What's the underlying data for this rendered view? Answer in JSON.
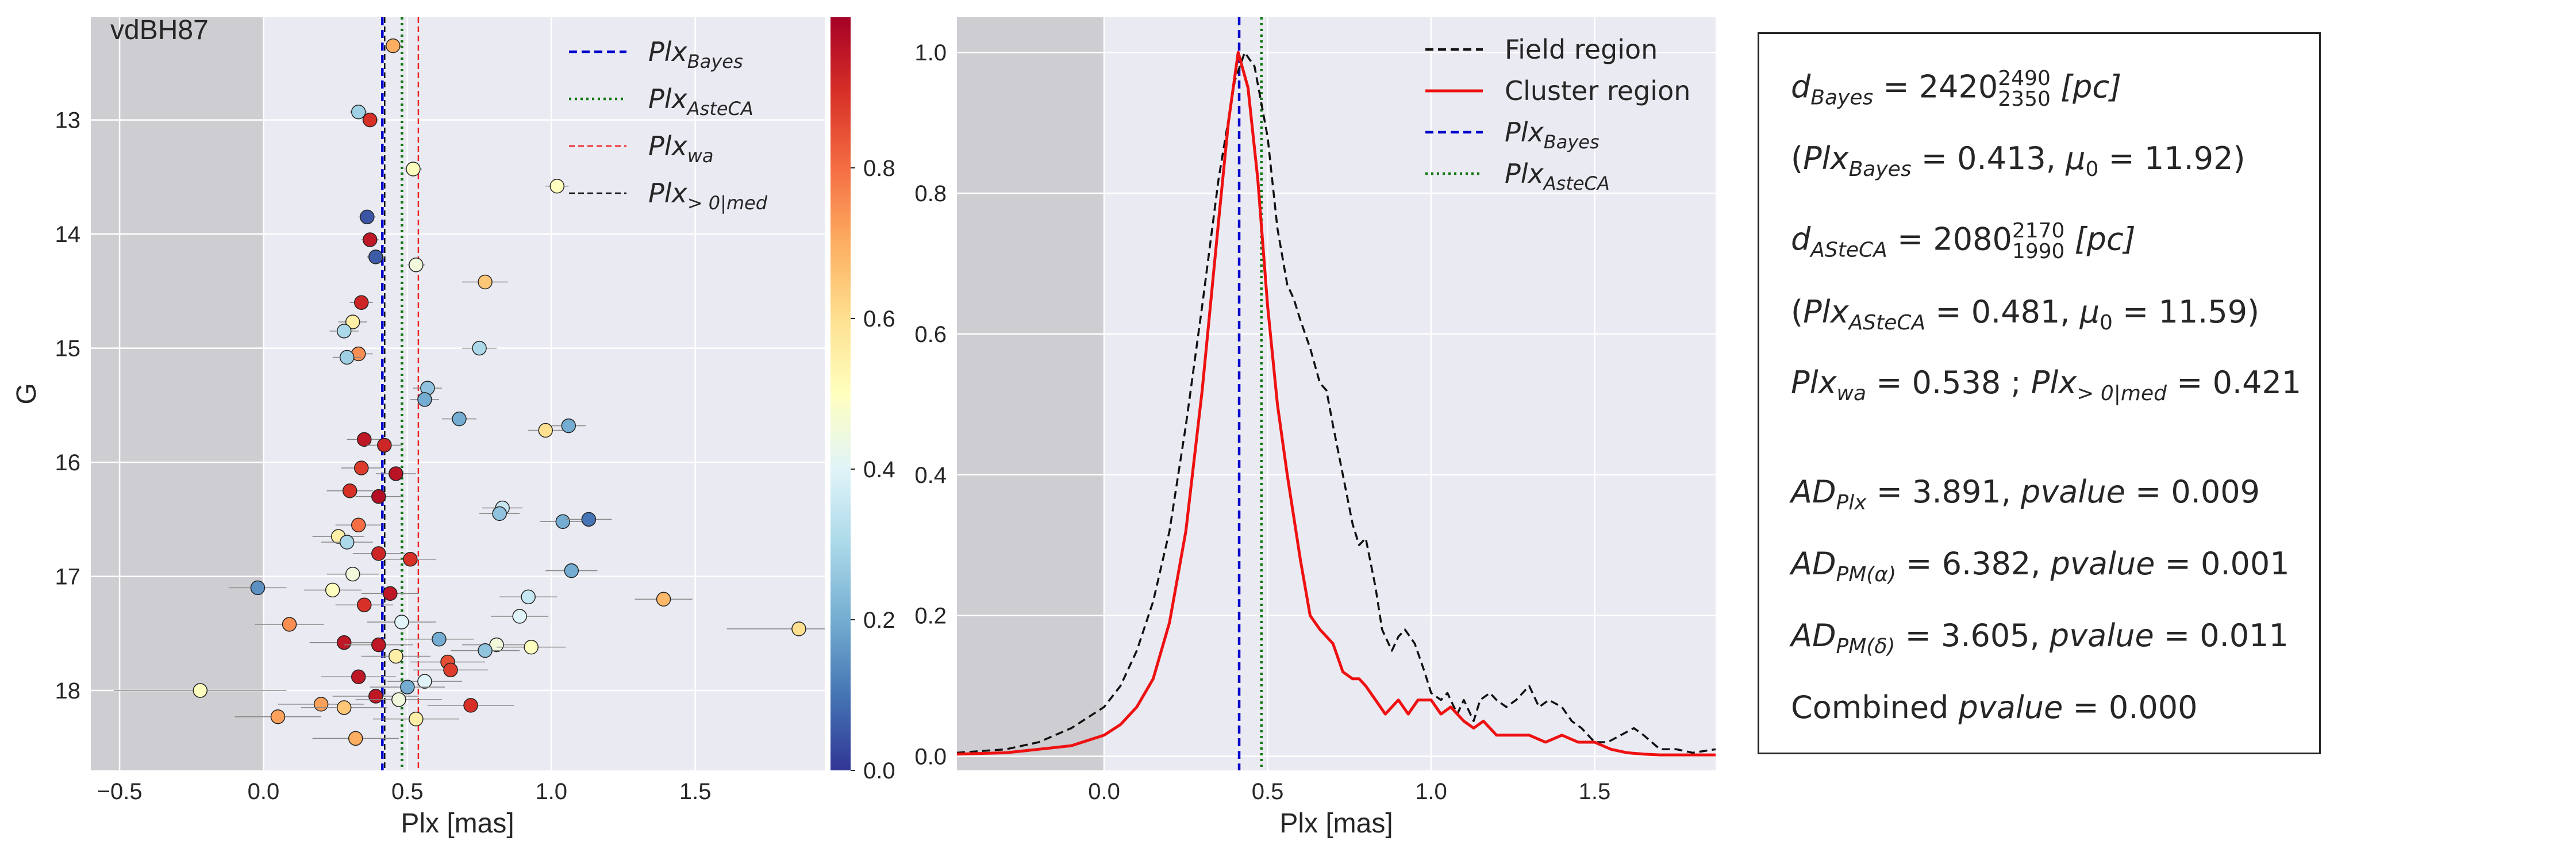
{
  "chart_data": [
    {
      "type": "scatter",
      "title": "",
      "annotation": "vdBH87",
      "xlabel": "Plx [mas]",
      "ylabel": "G",
      "xlim": [
        -0.6,
        1.95
      ],
      "ylim": [
        18.7,
        12.1
      ],
      "y_inverted": true,
      "grid": true,
      "x_ticks": [
        -0.5,
        0.0,
        0.5,
        1.0,
        1.5
      ],
      "x_tick_labels": [
        "−0.5",
        "0.0",
        "0.5",
        "1.0",
        "1.5"
      ],
      "y_ticks": [
        13,
        14,
        15,
        16,
        17,
        18
      ],
      "y_tick_labels": [
        "13",
        "14",
        "15",
        "16",
        "17",
        "18"
      ],
      "shaded_region": {
        "x_from": -0.6,
        "x_to": 0.0
      },
      "legend_placement": "top-right",
      "legend": [
        {
          "label_main": "Plx",
          "label_sub": "Bayes",
          "style": "dashed",
          "color": "#0000cc"
        },
        {
          "label_main": "Plx",
          "label_sub": "AsteCA",
          "style": "dotted",
          "color": "#117711"
        },
        {
          "label_main": "Plx",
          "label_sub": "wa",
          "style": "dashed-thin",
          "color": "#ee2222"
        },
        {
          "label_main": "Plx",
          "label_sub": "> 0|med",
          "style": "dashed-thin",
          "color": "#111111"
        }
      ],
      "vlines": [
        {
          "x": 0.413,
          "color": "#0000cc",
          "style": "dashed"
        },
        {
          "x": 0.481,
          "color": "#117711",
          "style": "dotted"
        },
        {
          "x": 0.538,
          "color": "#ee2222",
          "style": "dashed-thin"
        },
        {
          "x": 0.421,
          "color": "#111111",
          "style": "dashed-thin"
        }
      ],
      "colorbar": {
        "colormap": "RdYlBu_r",
        "range": [
          0.0,
          1.0
        ],
        "ticks": [
          0.0,
          0.2,
          0.4,
          0.6,
          0.8
        ],
        "tick_labels": [
          "0.0",
          "0.2",
          "0.4",
          "0.6",
          "0.8"
        ]
      },
      "points": [
        {
          "x": 0.45,
          "y": 12.35,
          "err": 0.03,
          "c": 0.7
        },
        {
          "x": 0.33,
          "y": 12.93,
          "err": 0.03,
          "c": 0.28
        },
        {
          "x": 0.37,
          "y": 13.0,
          "err": 0.03,
          "c": 0.9
        },
        {
          "x": 0.52,
          "y": 13.43,
          "err": 0.03,
          "c": 0.5
        },
        {
          "x": 1.02,
          "y": 13.58,
          "err": 0.04,
          "c": 0.5
        },
        {
          "x": 0.36,
          "y": 13.85,
          "err": 0.03,
          "c": 0.05
        },
        {
          "x": 0.37,
          "y": 14.05,
          "err": 0.03,
          "c": 0.95
        },
        {
          "x": 0.39,
          "y": 14.2,
          "err": 0.03,
          "c": 0.06
        },
        {
          "x": 0.53,
          "y": 14.27,
          "err": 0.03,
          "c": 0.45
        },
        {
          "x": 0.77,
          "y": 14.42,
          "err": 0.08,
          "c": 0.65
        },
        {
          "x": 0.34,
          "y": 14.6,
          "err": 0.04,
          "c": 0.92
        },
        {
          "x": 0.31,
          "y": 14.77,
          "err": 0.05,
          "c": 0.55
        },
        {
          "x": 0.28,
          "y": 14.85,
          "err": 0.05,
          "c": 0.3
        },
        {
          "x": 0.33,
          "y": 15.05,
          "err": 0.05,
          "c": 0.75
        },
        {
          "x": 0.29,
          "y": 15.08,
          "err": 0.05,
          "c": 0.28
        },
        {
          "x": 0.75,
          "y": 15.0,
          "err": 0.06,
          "c": 0.3
        },
        {
          "x": 0.57,
          "y": 15.35,
          "err": 0.05,
          "c": 0.25
        },
        {
          "x": 0.56,
          "y": 15.45,
          "err": 0.05,
          "c": 0.2
        },
        {
          "x": 0.68,
          "y": 15.62,
          "err": 0.06,
          "c": 0.2
        },
        {
          "x": 0.98,
          "y": 15.72,
          "err": 0.06,
          "c": 0.6
        },
        {
          "x": 1.06,
          "y": 15.68,
          "err": 0.06,
          "c": 0.2
        },
        {
          "x": 0.35,
          "y": 15.8,
          "err": 0.06,
          "c": 0.95
        },
        {
          "x": 0.42,
          "y": 15.85,
          "err": 0.06,
          "c": 0.92
        },
        {
          "x": 0.34,
          "y": 16.05,
          "err": 0.07,
          "c": 0.88
        },
        {
          "x": 0.46,
          "y": 16.1,
          "err": 0.07,
          "c": 0.96
        },
        {
          "x": 0.3,
          "y": 16.25,
          "err": 0.08,
          "c": 0.9
        },
        {
          "x": 0.4,
          "y": 16.3,
          "err": 0.08,
          "c": 0.97
        },
        {
          "x": 0.83,
          "y": 16.4,
          "err": 0.07,
          "c": 0.35
        },
        {
          "x": 0.82,
          "y": 16.45,
          "err": 0.07,
          "c": 0.25
        },
        {
          "x": 1.04,
          "y": 16.52,
          "err": 0.08,
          "c": 0.2
        },
        {
          "x": 1.13,
          "y": 16.5,
          "err": 0.08,
          "c": 0.1
        },
        {
          "x": 0.33,
          "y": 16.55,
          "err": 0.08,
          "c": 0.8
        },
        {
          "x": 0.26,
          "y": 16.65,
          "err": 0.09,
          "c": 0.55
        },
        {
          "x": 0.29,
          "y": 16.7,
          "err": 0.09,
          "c": 0.3
        },
        {
          "x": 0.4,
          "y": 16.8,
          "err": 0.09,
          "c": 0.92
        },
        {
          "x": 0.51,
          "y": 16.85,
          "err": 0.09,
          "c": 0.9
        },
        {
          "x": 1.07,
          "y": 16.95,
          "err": 0.09,
          "c": 0.2
        },
        {
          "x": 0.31,
          "y": 16.98,
          "err": 0.09,
          "c": 0.45
        },
        {
          "x": -0.02,
          "y": 17.1,
          "err": 0.1,
          "c": 0.15
        },
        {
          "x": 0.24,
          "y": 17.12,
          "err": 0.1,
          "c": 0.5
        },
        {
          "x": 0.44,
          "y": 17.15,
          "err": 0.1,
          "c": 0.95
        },
        {
          "x": 0.92,
          "y": 17.18,
          "err": 0.1,
          "c": 0.35
        },
        {
          "x": 1.39,
          "y": 17.2,
          "err": 0.1,
          "c": 0.68
        },
        {
          "x": 0.35,
          "y": 17.25,
          "err": 0.1,
          "c": 0.9
        },
        {
          "x": 0.89,
          "y": 17.35,
          "err": 0.1,
          "c": 0.4
        },
        {
          "x": 0.09,
          "y": 17.42,
          "err": 0.12,
          "c": 0.75
        },
        {
          "x": 0.48,
          "y": 17.4,
          "err": 0.12,
          "c": 0.4
        },
        {
          "x": 1.86,
          "y": 17.46,
          "err": 0.25,
          "c": 0.6
        },
        {
          "x": 0.61,
          "y": 17.55,
          "err": 0.12,
          "c": 0.2
        },
        {
          "x": 0.28,
          "y": 17.58,
          "err": 0.12,
          "c": 0.95
        },
        {
          "x": 0.4,
          "y": 17.6,
          "err": 0.12,
          "c": 0.95
        },
        {
          "x": 0.81,
          "y": 17.6,
          "err": 0.12,
          "c": 0.45
        },
        {
          "x": 0.93,
          "y": 17.62,
          "err": 0.12,
          "c": 0.5
        },
        {
          "x": 0.77,
          "y": 17.65,
          "err": 0.12,
          "c": 0.25
        },
        {
          "x": 0.46,
          "y": 17.7,
          "err": 0.12,
          "c": 0.55
        },
        {
          "x": 0.64,
          "y": 17.75,
          "err": 0.13,
          "c": 0.85
        },
        {
          "x": 0.65,
          "y": 17.82,
          "err": 0.13,
          "c": 0.88
        },
        {
          "x": 0.33,
          "y": 17.88,
          "err": 0.13,
          "c": 0.95
        },
        {
          "x": 0.56,
          "y": 17.92,
          "err": 0.13,
          "c": 0.4
        },
        {
          "x": 0.5,
          "y": 17.97,
          "err": 0.13,
          "c": 0.2
        },
        {
          "x": -0.22,
          "y": 18.0,
          "err": 0.3,
          "c": 0.5
        },
        {
          "x": 0.39,
          "y": 18.05,
          "err": 0.15,
          "c": 0.95
        },
        {
          "x": 0.47,
          "y": 18.08,
          "err": 0.15,
          "c": 0.45
        },
        {
          "x": 0.2,
          "y": 18.12,
          "err": 0.15,
          "c": 0.72
        },
        {
          "x": 0.28,
          "y": 18.15,
          "err": 0.15,
          "c": 0.65
        },
        {
          "x": 0.72,
          "y": 18.13,
          "err": 0.15,
          "c": 0.9
        },
        {
          "x": 0.05,
          "y": 18.23,
          "err": 0.15,
          "c": 0.72
        },
        {
          "x": 0.53,
          "y": 18.25,
          "err": 0.15,
          "c": 0.55
        },
        {
          "x": 0.32,
          "y": 18.42,
          "err": 0.15,
          "c": 0.7
        }
      ]
    },
    {
      "type": "line",
      "title": "",
      "xlabel": "Plx [mas]",
      "ylabel": "",
      "xlim": [
        -0.45,
        1.87
      ],
      "ylim": [
        -0.02,
        1.05
      ],
      "grid": true,
      "x_ticks": [
        0.0,
        0.5,
        1.0,
        1.5
      ],
      "x_tick_labels": [
        "0.0",
        "0.5",
        "1.0",
        "1.5"
      ],
      "y_ticks": [
        0.0,
        0.2,
        0.4,
        0.6,
        0.8,
        1.0
      ],
      "y_tick_labels": [
        "0.0",
        "0.2",
        "0.4",
        "0.6",
        "0.8",
        "1.0"
      ],
      "shaded_region": {
        "x_from": -0.45,
        "x_to": 0.0
      },
      "legend_placement": "top-right",
      "legend": [
        {
          "label": "Field region",
          "style": "dashed",
          "color": "#111111"
        },
        {
          "label": "Cluster region",
          "style": "solid",
          "color": "#ee1111"
        },
        {
          "label_main": "Plx",
          "label_sub": "Bayes",
          "style": "dashed",
          "color": "#0000cc"
        },
        {
          "label_main": "Plx",
          "label_sub": "AsteCA",
          "style": "dotted",
          "color": "#117711"
        }
      ],
      "vlines": [
        {
          "x": 0.413,
          "color": "#0000cc",
          "style": "dashed"
        },
        {
          "x": 0.481,
          "color": "#117711",
          "style": "dotted"
        }
      ],
      "series": [
        {
          "name": "Field region",
          "color": "#111111",
          "style": "dashed",
          "x": [
            -0.45,
            -0.3,
            -0.2,
            -0.1,
            0.0,
            0.05,
            0.1,
            0.15,
            0.2,
            0.25,
            0.3,
            0.35,
            0.4,
            0.43,
            0.46,
            0.5,
            0.53,
            0.56,
            0.58,
            0.6,
            0.63,
            0.66,
            0.68,
            0.7,
            0.73,
            0.76,
            0.78,
            0.8,
            0.83,
            0.85,
            0.88,
            0.9,
            0.92,
            0.95,
            0.98,
            1.0,
            1.03,
            1.05,
            1.08,
            1.1,
            1.13,
            1.15,
            1.18,
            1.2,
            1.23,
            1.26,
            1.3,
            1.33,
            1.36,
            1.4,
            1.43,
            1.46,
            1.5,
            1.54,
            1.58,
            1.62,
            1.65,
            1.7,
            1.75,
            1.8,
            1.87
          ],
          "y": [
            0.005,
            0.01,
            0.02,
            0.04,
            0.07,
            0.1,
            0.15,
            0.22,
            0.32,
            0.47,
            0.64,
            0.82,
            0.96,
            1.0,
            0.98,
            0.88,
            0.75,
            0.67,
            0.65,
            0.62,
            0.58,
            0.53,
            0.52,
            0.47,
            0.4,
            0.33,
            0.3,
            0.31,
            0.24,
            0.18,
            0.15,
            0.17,
            0.18,
            0.16,
            0.12,
            0.09,
            0.08,
            0.09,
            0.06,
            0.08,
            0.05,
            0.08,
            0.09,
            0.08,
            0.07,
            0.08,
            0.1,
            0.07,
            0.08,
            0.07,
            0.05,
            0.04,
            0.02,
            0.02,
            0.03,
            0.04,
            0.03,
            0.01,
            0.01,
            0.005,
            0.01
          ]
        },
        {
          "name": "Cluster region",
          "color": "#ee1111",
          "style": "solid",
          "x": [
            -0.45,
            -0.3,
            -0.2,
            -0.1,
            0.0,
            0.05,
            0.1,
            0.15,
            0.2,
            0.25,
            0.3,
            0.35,
            0.38,
            0.41,
            0.44,
            0.47,
            0.5,
            0.53,
            0.56,
            0.6,
            0.63,
            0.66,
            0.7,
            0.73,
            0.76,
            0.78,
            0.8,
            0.83,
            0.86,
            0.9,
            0.93,
            0.96,
            1.0,
            1.03,
            1.06,
            1.1,
            1.13,
            1.16,
            1.2,
            1.25,
            1.3,
            1.35,
            1.4,
            1.45,
            1.5,
            1.55,
            1.6,
            1.65,
            1.7,
            1.8,
            1.87
          ],
          "y": [
            0.003,
            0.005,
            0.01,
            0.015,
            0.03,
            0.045,
            0.07,
            0.11,
            0.19,
            0.32,
            0.52,
            0.76,
            0.9,
            1.0,
            0.95,
            0.82,
            0.64,
            0.5,
            0.4,
            0.28,
            0.2,
            0.18,
            0.16,
            0.12,
            0.11,
            0.11,
            0.1,
            0.08,
            0.06,
            0.08,
            0.06,
            0.08,
            0.08,
            0.06,
            0.07,
            0.05,
            0.04,
            0.05,
            0.03,
            0.03,
            0.03,
            0.02,
            0.03,
            0.02,
            0.02,
            0.01,
            0.005,
            0.003,
            0.002,
            0.002,
            0.002
          ]
        }
      ]
    }
  ],
  "stats": {
    "d_bayes": {
      "sym": "d",
      "sub": "Bayes",
      "eq": " = 2420",
      "sup": "2490",
      "low": "2350",
      "unit": "[pc]"
    },
    "plx_bayes_line": {
      "open": "(",
      "plx": "Plx",
      "sub": "Bayes",
      "val": " = 0.413, ",
      "mu": "μ",
      "mu_sub": "0",
      "mu_val": " = 11.92)"
    },
    "d_asteca": {
      "sym": "d",
      "sub": "ASteCA",
      "eq": " = 2080",
      "sup": "2170",
      "low": "1990",
      "unit": "[pc]"
    },
    "plx_asteca_line": {
      "open": "(",
      "plx": "Plx",
      "sub": "ASteCA",
      "val": " = 0.481, ",
      "mu": "μ",
      "mu_sub": "0",
      "mu_val": " = 11.59)"
    },
    "plx_wa_line": {
      "plx": "Plx",
      "sub": "wa",
      "val": " = 0.538 ; ",
      "plx2": "Plx",
      "sub2": "> 0|med",
      "val2": " = 0.421"
    },
    "ad_plx": {
      "ad": "AD",
      "sub": "Plx",
      "val": " = 3.891, ",
      "pv": "pvalue",
      "pval": " = 0.009"
    },
    "ad_pma": {
      "ad": "AD",
      "sub": "PM(α)",
      "val": " = 6.382, ",
      "pv": "pvalue",
      "pval": " = 0.001"
    },
    "ad_pmd": {
      "ad": "AD",
      "sub": "PM(δ)",
      "val": " = 3.605, ",
      "pv": "pvalue",
      "pval": " = 0.011"
    },
    "combined": {
      "label": "Combined ",
      "pv": "pvalue",
      "pval": " = 0.000"
    }
  }
}
